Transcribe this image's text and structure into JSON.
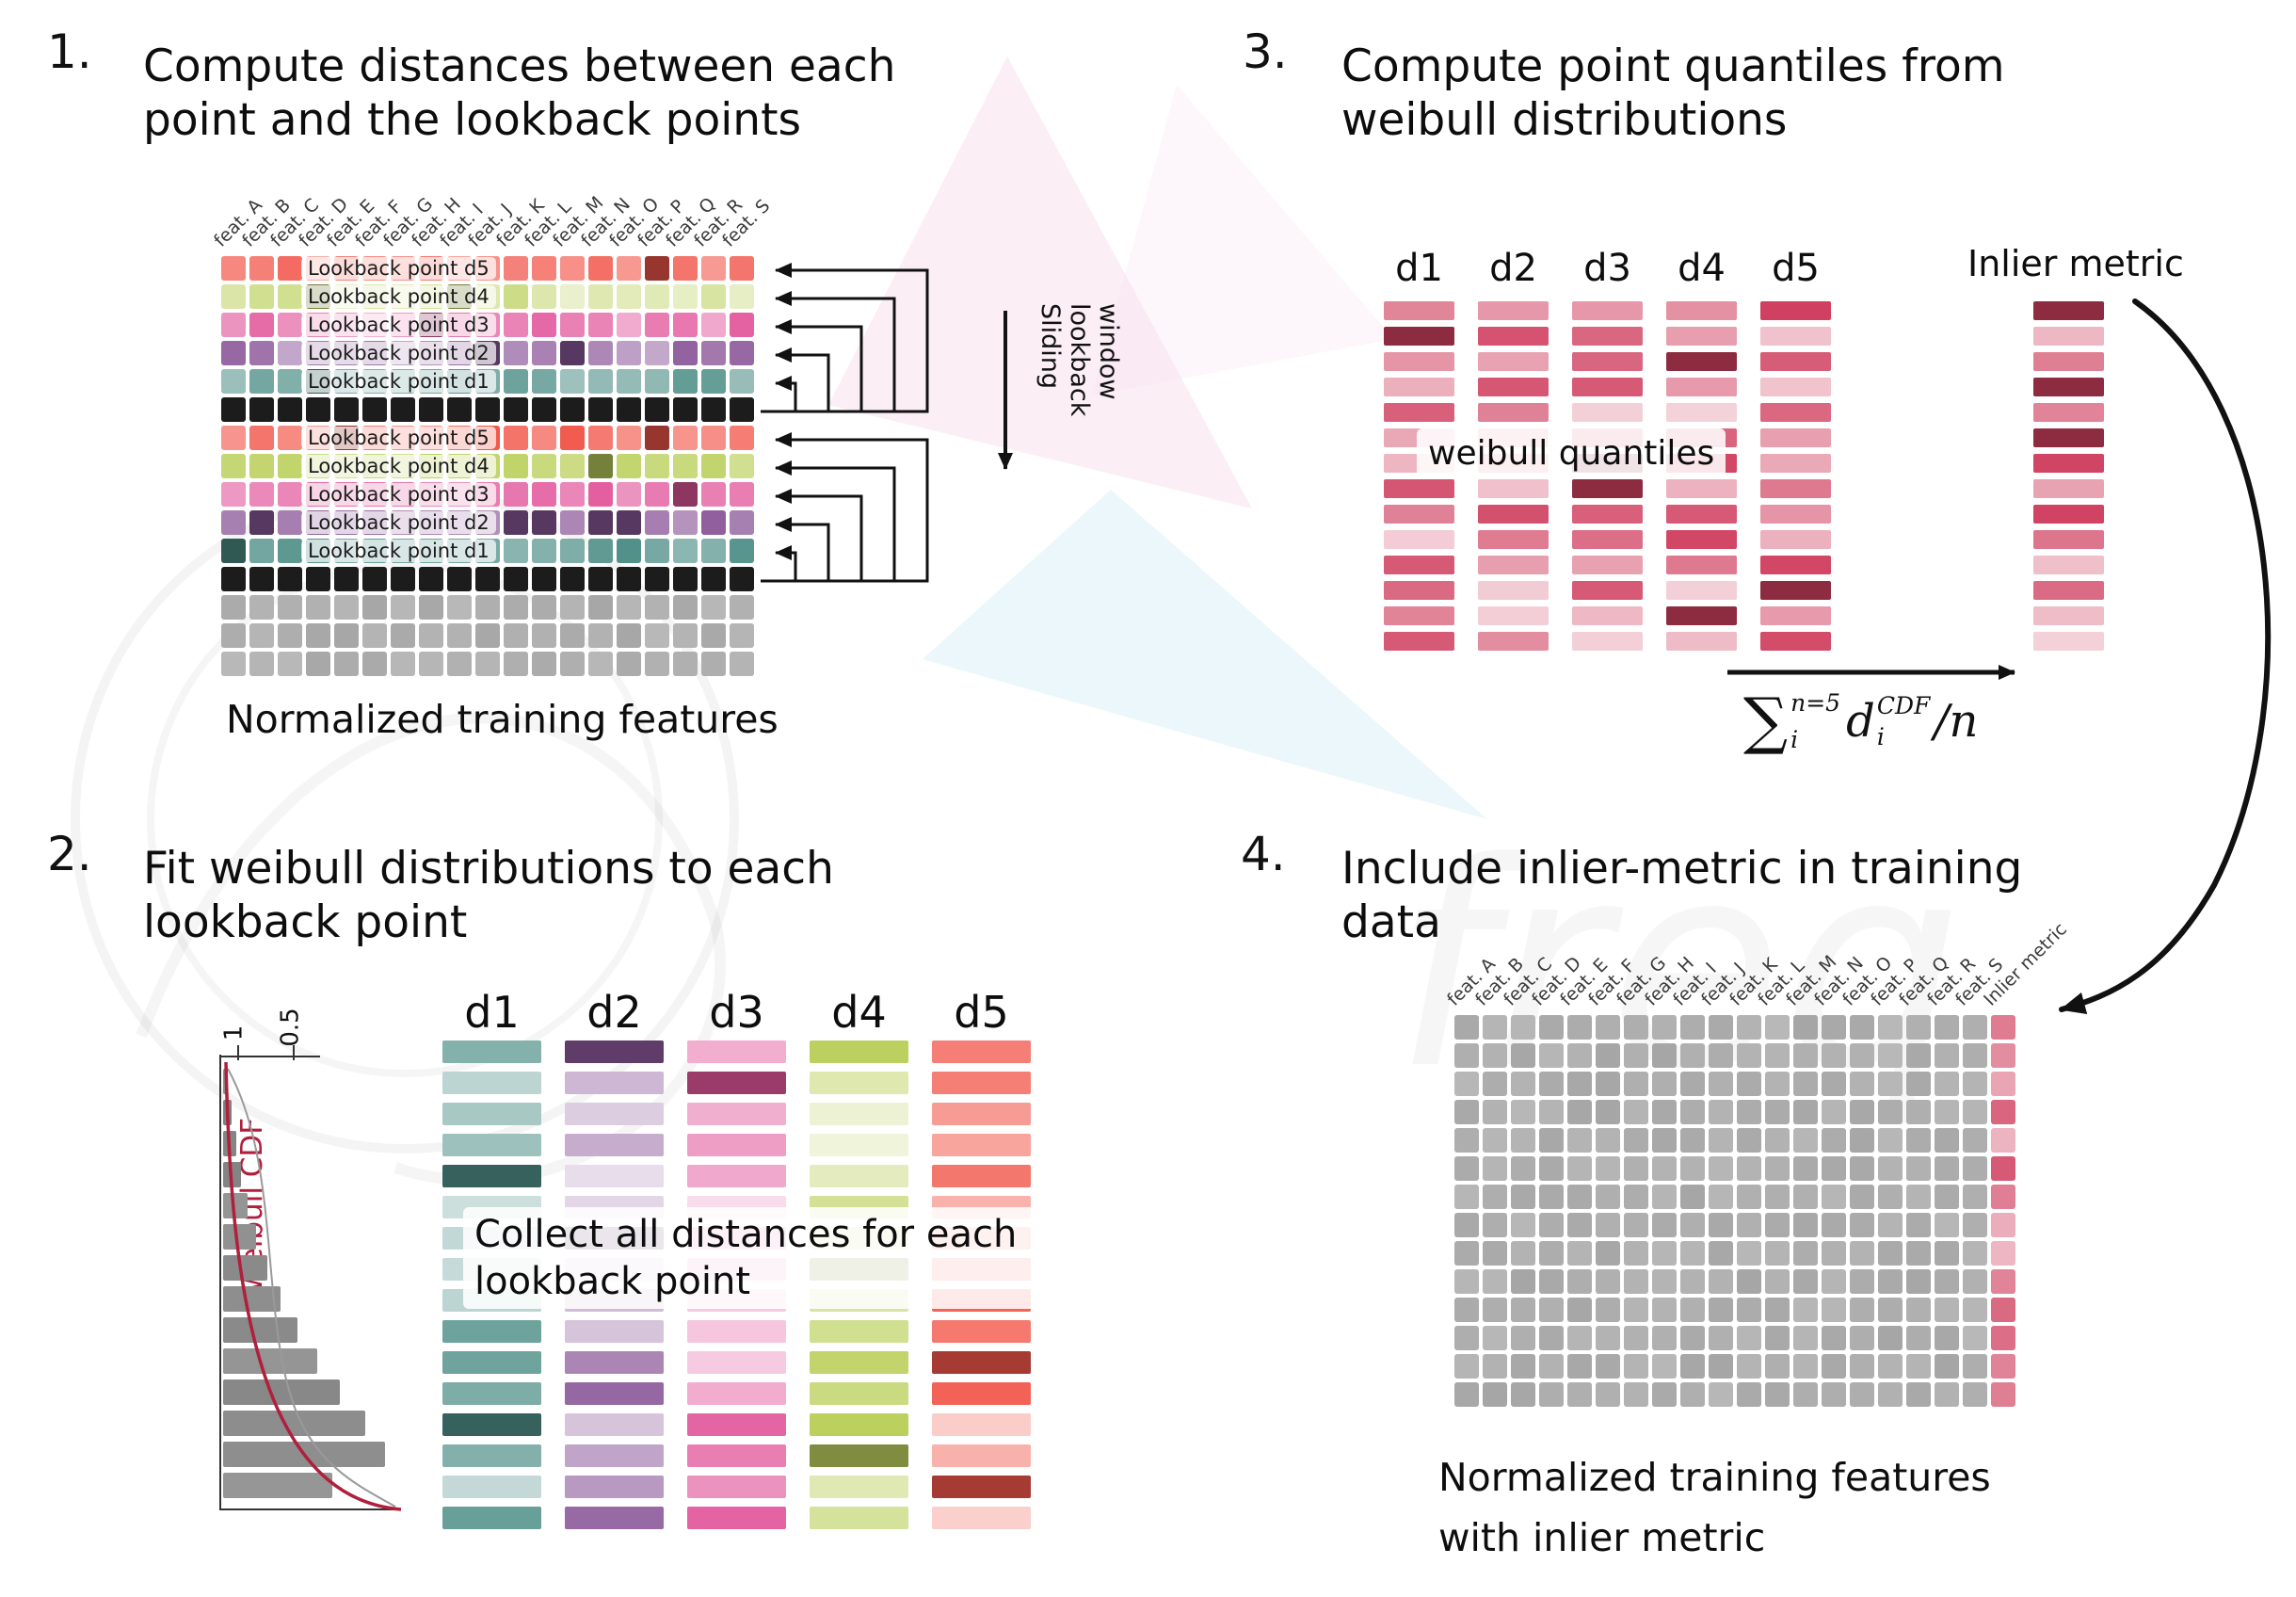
{
  "colors": {
    "d1": "#4f8f88",
    "d2": "#8d5a9b",
    "d3": "#e2579c",
    "d4": "#bcd05e",
    "d5": "#f2574b",
    "black": "#1c1c1c",
    "gray": "#a6a6a6",
    "crimson": "#d04060",
    "accent_red": "#b01f3c",
    "ink": "#111111"
  },
  "features": [
    "feat. A",
    "feat. B",
    "feat. C",
    "feat. D",
    "feat. E",
    "feat. F",
    "feat. G",
    "feat. H",
    "feat. I",
    "feat. J",
    "feat. K",
    "feat. L",
    "feat. M",
    "feat. N",
    "feat. O",
    "feat. P",
    "feat. Q",
    "feat. R",
    "feat. S"
  ],
  "panel1": {
    "number": "1.",
    "title_line1": "Compute distances between each",
    "title_line2": "point and the lookback points",
    "sliding_lines": "Sliding\nlookback\nwindow",
    "caption": "Normalized training features",
    "rows": [
      {
        "c": "d5",
        "a": [
          0.45,
          0.95
        ],
        "label": "Lookback point d5"
      },
      {
        "c": "d4",
        "a": [
          0.3,
          0.75
        ],
        "label": "Lookback point d4"
      },
      {
        "c": "d3",
        "a": [
          0.45,
          0.95
        ],
        "label": "Lookback point d3"
      },
      {
        "c": "d2",
        "a": [
          0.5,
          0.95
        ],
        "label": "Lookback point d2"
      },
      {
        "c": "d1",
        "a": [
          0.55,
          0.95
        ],
        "label": "Lookback point d1"
      },
      {
        "c": "black",
        "a": [
          1,
          1
        ]
      },
      {
        "c": "d5",
        "a": [
          0.6,
          1
        ],
        "label": "Lookback point d5"
      },
      {
        "c": "d4",
        "a": [
          0.65,
          1
        ],
        "label": "Lookback point d4"
      },
      {
        "c": "d3",
        "a": [
          0.6,
          1
        ],
        "label": "Lookback point d3"
      },
      {
        "c": "d2",
        "a": [
          0.65,
          1
        ],
        "label": "Lookback point d2"
      },
      {
        "c": "d1",
        "a": [
          0.65,
          1
        ],
        "label": "Lookback point d1"
      },
      {
        "c": "black",
        "a": [
          1,
          1
        ]
      },
      {
        "c": "gray",
        "a": [
          0.8,
          1
        ]
      },
      {
        "c": "gray",
        "a": [
          0.8,
          1
        ]
      },
      {
        "c": "gray",
        "a": [
          0.8,
          1
        ]
      }
    ]
  },
  "panel2": {
    "number": "2.",
    "title_line1": "Fit weibull distributions to each",
    "title_line2": "lookback point",
    "axis_label_1": "1",
    "axis_label_05": "0.5",
    "cdf_label": "Weibull CDF",
    "overlay": "Collect all distances for each lookback point",
    "columns": [
      {
        "name": "d1",
        "color": "d1"
      },
      {
        "name": "d2",
        "color": "d2"
      },
      {
        "name": "d3",
        "color": "d3"
      },
      {
        "name": "d4",
        "color": "d4"
      },
      {
        "name": "d5",
        "color": "d5"
      }
    ],
    "bars_per_column": 16,
    "histogram": {
      "type": "bar",
      "orientation": "horizontal",
      "values": [
        3,
        5,
        8,
        11,
        15,
        20,
        27,
        35,
        45,
        57,
        71,
        86,
        98,
        66
      ]
    }
  },
  "panel3": {
    "number": "3.",
    "title_line1": "Compute point quantiles from",
    "title_line2": "weibull distributions",
    "overlay": "weibull quantiles",
    "columns": [
      {
        "name": "d1",
        "color": "crimson"
      },
      {
        "name": "d2",
        "color": "crimson"
      },
      {
        "name": "d3",
        "color": "crimson"
      },
      {
        "name": "d4",
        "color": "crimson"
      },
      {
        "name": "d5",
        "color": "crimson"
      }
    ],
    "bars_per_column": 14,
    "inlier_label": "Inlier metric",
    "formula": {
      "sum": "∑",
      "sup": "n=5",
      "sub": "i",
      "var": "d",
      "var_sup": "CDF",
      "var_sub": "i",
      "tail": "/n"
    }
  },
  "panel4": {
    "number": "4.",
    "title_line1": "Include inlier-metric in training",
    "title_line2": "data",
    "inlier_col_label": "Inlier metric",
    "caption_line1": "Normalized training features",
    "caption_line2": "with inlier metric",
    "rows": 14
  },
  "watermark": {
    "text": "freq"
  }
}
